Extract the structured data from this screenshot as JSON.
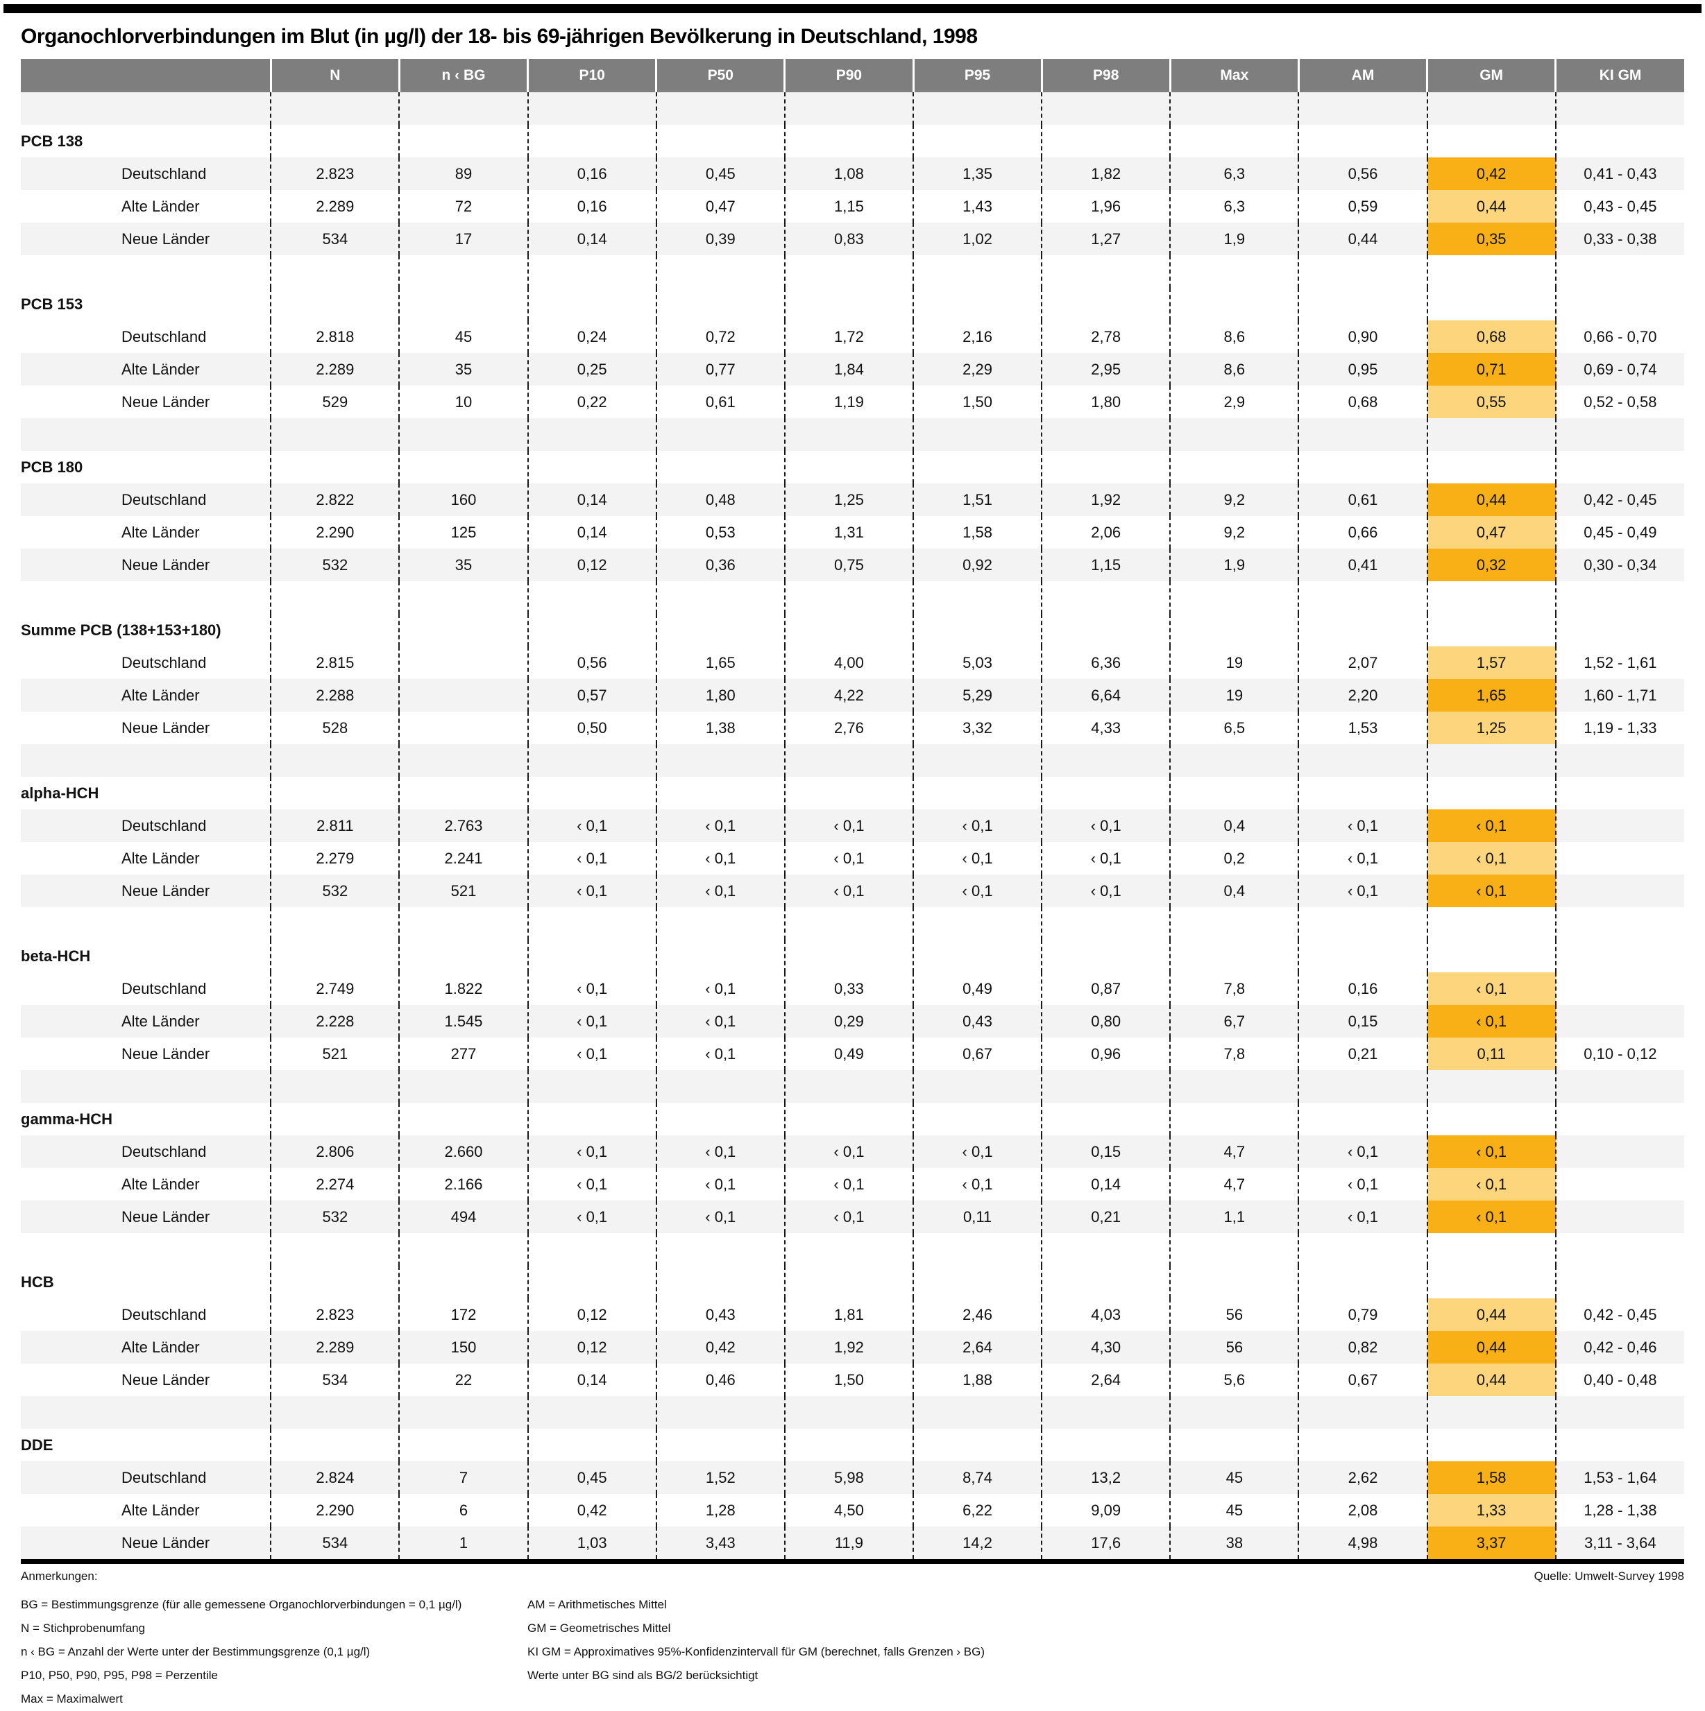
{
  "title": "Organochlorverbindungen im Blut (in µg/l) der 18- bis 69-jährigen Bevölkerung in Deutschland, 1998",
  "header": {
    "columns": [
      "",
      "N",
      "n ‹ BG",
      "P10",
      "P50",
      "P90",
      "P95",
      "P98",
      "Max",
      "AM",
      "GM",
      "KI GM"
    ]
  },
  "groups": [
    {
      "name": "PCB 138",
      "spacer_before": "gray",
      "rows": [
        {
          "label": "Deutschland",
          "shade": "gray",
          "values": [
            "2.823",
            "89",
            "0,16",
            "0,45",
            "1,08",
            "1,35",
            "1,82",
            "6,3",
            "0,56",
            "0,42",
            "0,41 - 0,43"
          ]
        },
        {
          "label": "Alte Länder",
          "shade": "white",
          "values": [
            "2.289",
            "72",
            "0,16",
            "0,47",
            "1,15",
            "1,43",
            "1,96",
            "6,3",
            "0,59",
            "0,44",
            "0,43 - 0,45"
          ]
        },
        {
          "label": "Neue Länder",
          "shade": "gray",
          "values": [
            "534",
            "17",
            "0,14",
            "0,39",
            "0,83",
            "1,02",
            "1,27",
            "1,9",
            "0,44",
            "0,35",
            "0,33 - 0,38"
          ]
        }
      ]
    },
    {
      "name": "PCB 153",
      "spacer_before": "white",
      "rows": [
        {
          "label": "Deutschland",
          "shade": "white",
          "values": [
            "2.818",
            "45",
            "0,24",
            "0,72",
            "1,72",
            "2,16",
            "2,78",
            "8,6",
            "0,90",
            "0,68",
            "0,66 - 0,70"
          ]
        },
        {
          "label": "Alte Länder",
          "shade": "gray",
          "values": [
            "2.289",
            "35",
            "0,25",
            "0,77",
            "1,84",
            "2,29",
            "2,95",
            "8,6",
            "0,95",
            "0,71",
            "0,69 - 0,74"
          ]
        },
        {
          "label": "Neue Länder",
          "shade": "white",
          "values": [
            "529",
            "10",
            "0,22",
            "0,61",
            "1,19",
            "1,50",
            "1,80",
            "2,9",
            "0,68",
            "0,55",
            "0,52 - 0,58"
          ]
        }
      ]
    },
    {
      "name": "PCB 180",
      "spacer_before": "gray",
      "rows": [
        {
          "label": "Deutschland",
          "shade": "gray",
          "values": [
            "2.822",
            "160",
            "0,14",
            "0,48",
            "1,25",
            "1,51",
            "1,92",
            "9,2",
            "0,61",
            "0,44",
            "0,42 - 0,45"
          ]
        },
        {
          "label": "Alte Länder",
          "shade": "white",
          "values": [
            "2.290",
            "125",
            "0,14",
            "0,53",
            "1,31",
            "1,58",
            "2,06",
            "9,2",
            "0,66",
            "0,47",
            "0,45 - 0,49"
          ]
        },
        {
          "label": "Neue Länder",
          "shade": "gray",
          "values": [
            "532",
            "35",
            "0,12",
            "0,36",
            "0,75",
            "0,92",
            "1,15",
            "1,9",
            "0,41",
            "0,32",
            "0,30 - 0,34"
          ]
        }
      ]
    },
    {
      "name": "Summe PCB (138+153+180)",
      "spacer_before": "white",
      "rows": [
        {
          "label": "Deutschland",
          "shade": "white",
          "values": [
            "2.815",
            "",
            "0,56",
            "1,65",
            "4,00",
            "5,03",
            "6,36",
            "19",
            "2,07",
            "1,57",
            "1,52 - 1,61"
          ]
        },
        {
          "label": "Alte Länder",
          "shade": "gray",
          "values": [
            "2.288",
            "",
            "0,57",
            "1,80",
            "4,22",
            "5,29",
            "6,64",
            "19",
            "2,20",
            "1,65",
            "1,60 - 1,71"
          ]
        },
        {
          "label": "Neue Länder",
          "shade": "white",
          "values": [
            "528",
            "",
            "0,50",
            "1,38",
            "2,76",
            "3,32",
            "4,33",
            "6,5",
            "1,53",
            "1,25",
            "1,19 - 1,33"
          ]
        }
      ]
    },
    {
      "name": "alpha-HCH",
      "spacer_before": "gray",
      "rows": [
        {
          "label": "Deutschland",
          "shade": "gray",
          "values": [
            "2.811",
            "2.763",
            "‹ 0,1",
            "‹ 0,1",
            "‹ 0,1",
            "‹ 0,1",
            "‹ 0,1",
            "0,4",
            "‹ 0,1",
            "‹ 0,1",
            ""
          ]
        },
        {
          "label": "Alte Länder",
          "shade": "white",
          "values": [
            "2.279",
            "2.241",
            "‹ 0,1",
            "‹ 0,1",
            "‹ 0,1",
            "‹ 0,1",
            "‹ 0,1",
            "0,2",
            "‹ 0,1",
            "‹ 0,1",
            ""
          ]
        },
        {
          "label": "Neue Länder",
          "shade": "gray",
          "values": [
            "532",
            "521",
            "‹ 0,1",
            "‹ 0,1",
            "‹ 0,1",
            "‹ 0,1",
            "‹ 0,1",
            "0,4",
            "‹ 0,1",
            "‹ 0,1",
            ""
          ]
        }
      ]
    },
    {
      "name": "beta-HCH",
      "spacer_before": "white",
      "rows": [
        {
          "label": "Deutschland",
          "shade": "white",
          "values": [
            "2.749",
            "1.822",
            "‹ 0,1",
            "‹ 0,1",
            "0,33",
            "0,49",
            "0,87",
            "7,8",
            "0,16",
            "‹ 0,1",
            ""
          ]
        },
        {
          "label": "Alte Länder",
          "shade": "gray",
          "values": [
            "2.228",
            "1.545",
            "‹ 0,1",
            "‹ 0,1",
            "0,29",
            "0,43",
            "0,80",
            "6,7",
            "0,15",
            "‹ 0,1",
            ""
          ]
        },
        {
          "label": "Neue Länder",
          "shade": "white",
          "values": [
            "521",
            "277",
            "‹ 0,1",
            "‹ 0,1",
            "0,49",
            "0,67",
            "0,96",
            "7,8",
            "0,21",
            "0,11",
            "0,10 - 0,12"
          ]
        }
      ]
    },
    {
      "name": "gamma-HCH",
      "spacer_before": "gray",
      "rows": [
        {
          "label": "Deutschland",
          "shade": "gray",
          "values": [
            "2.806",
            "2.660",
            "‹ 0,1",
            "‹ 0,1",
            "‹ 0,1",
            "‹ 0,1",
            "0,15",
            "4,7",
            "‹ 0,1",
            "‹ 0,1",
            ""
          ]
        },
        {
          "label": "Alte Länder",
          "shade": "white",
          "values": [
            "2.274",
            "2.166",
            "‹ 0,1",
            "‹ 0,1",
            "‹ 0,1",
            "‹ 0,1",
            "0,14",
            "4,7",
            "‹ 0,1",
            "‹ 0,1",
            ""
          ]
        },
        {
          "label": "Neue Länder",
          "shade": "gray",
          "values": [
            "532",
            "494",
            "‹ 0,1",
            "‹ 0,1",
            "‹ 0,1",
            "0,11",
            "0,21",
            "1,1",
            "‹ 0,1",
            "‹ 0,1",
            ""
          ]
        }
      ]
    },
    {
      "name": "HCB",
      "spacer_before": "white",
      "rows": [
        {
          "label": "Deutschland",
          "shade": "white",
          "values": [
            "2.823",
            "172",
            "0,12",
            "0,43",
            "1,81",
            "2,46",
            "4,03",
            "56",
            "0,79",
            "0,44",
            "0,42 - 0,45"
          ]
        },
        {
          "label": "Alte Länder",
          "shade": "gray",
          "values": [
            "2.289",
            "150",
            "0,12",
            "0,42",
            "1,92",
            "2,64",
            "4,30",
            "56",
            "0,82",
            "0,44",
            "0,42 - 0,46"
          ]
        },
        {
          "label": "Neue Länder",
          "shade": "white",
          "values": [
            "534",
            "22",
            "0,14",
            "0,46",
            "1,50",
            "1,88",
            "2,64",
            "5,6",
            "0,67",
            "0,44",
            "0,40 - 0,48"
          ]
        }
      ]
    },
    {
      "name": "DDE",
      "spacer_before": "gray",
      "rows": [
        {
          "label": "Deutschland",
          "shade": "gray",
          "values": [
            "2.824",
            "7",
            "0,45",
            "1,52",
            "5,98",
            "8,74",
            "13,2",
            "45",
            "2,62",
            "1,58",
            "1,53 - 1,64"
          ]
        },
        {
          "label": "Alte Länder",
          "shade": "white",
          "values": [
            "2.290",
            "6",
            "0,42",
            "1,28",
            "4,50",
            "6,22",
            "9,09",
            "45",
            "2,08",
            "1,33",
            "1,28 - 1,38"
          ]
        },
        {
          "label": "Neue Länder",
          "shade": "gray",
          "values": [
            "534",
            "1",
            "1,03",
            "3,43",
            "11,9",
            "14,2",
            "17,6",
            "38",
            "4,98",
            "3,37",
            "3,11 - 3,64"
          ]
        }
      ]
    }
  ],
  "footer": {
    "notes_title": "Anmerkungen:",
    "source": "Quelle: Umwelt-Survey 1998",
    "notes_left": [
      "BG = Bestimmungsgrenze (für alle gemessene Organochlorverbindungen = 0,1 µg/l)",
      "N = Stichprobenumfang",
      "n ‹ BG = Anzahl der Werte unter der Bestimmungsgrenze (0,1 µg/l)",
      "P10, P50, P90, P95, P98 = Perzentile",
      "Max = Maximalwert"
    ],
    "notes_right": [
      "AM = Arithmetisches Mittel",
      "GM = Geometrisches Mittel",
      "KI GM = Approximatives 95%-Konfidenzintervall für GM (berechnet, falls Grenzen › BG)",
      "Werte unter BG sind als BG/2 berücksichtigt"
    ]
  },
  "colors": {
    "header_bg": "#7e7e7e",
    "row_gray": "#f3f3f3",
    "gm_highlight_dark": "#f9b017",
    "gm_highlight_light": "#fcd57d",
    "rule_black": "#000000"
  }
}
